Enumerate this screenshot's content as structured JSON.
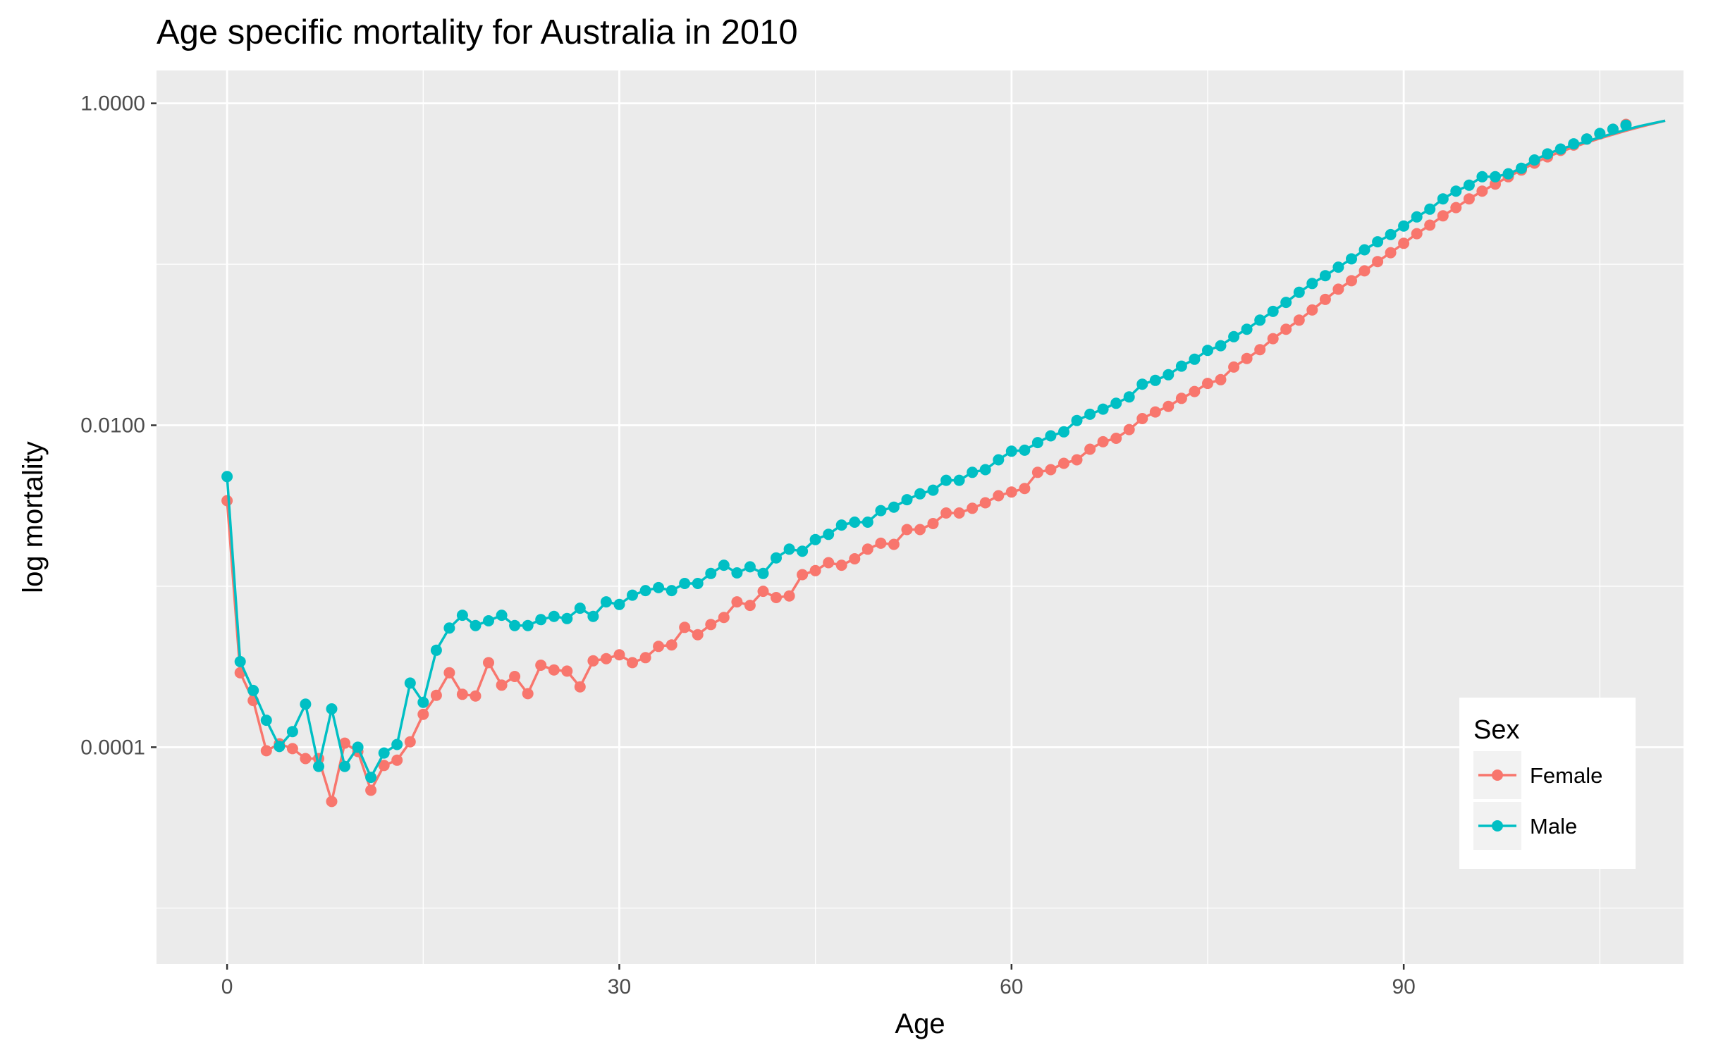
{
  "chart_data": {
    "type": "line",
    "title": "Age specific mortality for Australia in 2010",
    "xlabel": "Age",
    "ylabel": "log mortality",
    "x_scale": "linear",
    "y_scale": "log10",
    "xlim": [
      -5.4,
      111.4
    ],
    "ylim": [
      4.5e-06,
      1.6
    ],
    "x_ticks": [
      0,
      30,
      60,
      90
    ],
    "x_tick_labels": [
      "0",
      "30",
      "60",
      "90"
    ],
    "y_ticks": [
      0.0001,
      0.01,
      1.0
    ],
    "y_tick_labels": [
      "0.0001",
      "0.0100",
      "1.0000"
    ],
    "grid": true,
    "legend": {
      "title": "Sex",
      "position": "bottom-right"
    },
    "x": [
      0,
      1,
      2,
      3,
      4,
      5,
      6,
      7,
      8,
      9,
      10,
      11,
      12,
      13,
      14,
      15,
      16,
      17,
      18,
      19,
      20,
      21,
      22,
      23,
      24,
      25,
      26,
      27,
      28,
      29,
      30,
      31,
      32,
      33,
      34,
      35,
      36,
      37,
      38,
      39,
      40,
      41,
      42,
      43,
      44,
      45,
      46,
      47,
      48,
      49,
      50,
      51,
      52,
      53,
      54,
      55,
      56,
      57,
      58,
      59,
      60,
      61,
      62,
      63,
      64,
      65,
      66,
      67,
      68,
      69,
      70,
      71,
      72,
      73,
      74,
      75,
      76,
      77,
      78,
      79,
      80,
      81,
      82,
      83,
      84,
      85,
      86,
      87,
      88,
      89,
      90,
      91,
      92,
      93,
      94,
      95,
      96,
      97,
      98,
      99,
      100,
      101,
      102,
      103,
      104,
      105,
      106,
      107,
      108,
      109,
      110
    ],
    "series": [
      {
        "name": "Female",
        "color": "#F8766D",
        "values": [
          0.0034,
          0.00029,
          0.000195,
          9.5e-05,
          0.000105,
          9.8e-05,
          8.5e-05,
          8.5e-05,
          4.6e-05,
          0.000106,
          9.4e-05,
          5.4e-05,
          7.7e-05,
          8.3e-05,
          0.000108,
          0.00016,
          0.00021,
          0.00029,
          0.000213,
          0.000208,
          0.000335,
          0.000243,
          0.000275,
          0.000215,
          0.000323,
          0.000302,
          0.000297,
          0.000237,
          0.000344,
          0.000355,
          0.000375,
          0.000335,
          0.00036,
          0.000423,
          0.000432,
          0.000555,
          0.0005,
          0.000578,
          0.00064,
          0.0008,
          0.00076,
          0.00093,
          0.00085,
          0.00087,
          0.00118,
          0.00125,
          0.0014,
          0.00135,
          0.00148,
          0.0017,
          0.00185,
          0.00182,
          0.00225,
          0.00225,
          0.00245,
          0.00285,
          0.00285,
          0.00305,
          0.0033,
          0.00365,
          0.00385,
          0.00405,
          0.0051,
          0.0053,
          0.0058,
          0.0061,
          0.0071,
          0.0079,
          0.0083,
          0.0094,
          0.011,
          0.0121,
          0.0131,
          0.0147,
          0.0162,
          0.0182,
          0.0192,
          0.023,
          0.026,
          0.0295,
          0.0345,
          0.0395,
          0.045,
          0.052,
          0.0605,
          0.07,
          0.079,
          0.091,
          0.104,
          0.118,
          0.135,
          0.155,
          0.175,
          0.2,
          0.225,
          0.255,
          0.285,
          0.315,
          0.35,
          0.385,
          0.425,
          0.465,
          0.51,
          0.55,
          0.6,
          0.645,
          0.69,
          0.74,
          null,
          null,
          null
        ],
        "fitted": [
          0.0034,
          0.00029,
          0.000195,
          9.5e-05,
          0.000105,
          9.8e-05,
          8.5e-05,
          8.5e-05,
          4.6e-05,
          0.000106,
          9.4e-05,
          5.4e-05,
          7.7e-05,
          8.3e-05,
          0.000108,
          0.00016,
          0.00021,
          0.00029,
          0.000213,
          0.000208,
          0.000335,
          0.000243,
          0.000275,
          0.000215,
          0.000323,
          0.000302,
          0.000297,
          0.000237,
          0.000344,
          0.000355,
          0.000375,
          0.000335,
          0.00036,
          0.000423,
          0.000432,
          0.000555,
          0.0005,
          0.000578,
          0.00064,
          0.0008,
          0.00076,
          0.00093,
          0.00085,
          0.00087,
          0.00118,
          0.00125,
          0.0014,
          0.00135,
          0.00148,
          0.0017,
          0.00185,
          0.00182,
          0.00225,
          0.00225,
          0.00245,
          0.00285,
          0.00285,
          0.00305,
          0.0033,
          0.00365,
          0.00385,
          0.00405,
          0.0051,
          0.0053,
          0.0058,
          0.0061,
          0.0071,
          0.0079,
          0.0083,
          0.0094,
          0.011,
          0.0121,
          0.0131,
          0.0147,
          0.0162,
          0.0182,
          0.0192,
          0.023,
          0.026,
          0.0295,
          0.0345,
          0.0395,
          0.045,
          0.052,
          0.0605,
          0.07,
          0.079,
          0.091,
          0.104,
          0.118,
          0.135,
          0.155,
          0.175,
          0.2,
          0.225,
          0.255,
          0.285,
          0.315,
          0.35,
          0.385,
          0.425,
          0.465,
          0.5,
          0.535,
          0.57,
          0.605,
          0.64,
          0.675,
          0.71,
          0.745,
          0.78
        ]
      },
      {
        "name": "Male",
        "color": "#00BFC4",
        "values": [
          0.0048,
          0.00034,
          0.000225,
          0.000147,
          0.000101,
          0.000125,
          0.000185,
          7.6e-05,
          0.000173,
          7.6e-05,
          0.0001,
          6.5e-05,
          9.2e-05,
          0.000104,
          0.00025,
          0.00019,
          0.0004,
          0.00055,
          0.00066,
          0.00057,
          0.00061,
          0.00066,
          0.00057,
          0.00057,
          0.00062,
          0.00065,
          0.00063,
          0.00073,
          0.00065,
          0.0008,
          0.00077,
          0.00088,
          0.00094,
          0.00098,
          0.00094,
          0.00104,
          0.00104,
          0.0012,
          0.00135,
          0.00121,
          0.00132,
          0.0012,
          0.0015,
          0.0017,
          0.00165,
          0.00195,
          0.0021,
          0.0024,
          0.0025,
          0.0025,
          0.00295,
          0.0031,
          0.00345,
          0.00375,
          0.00395,
          0.00455,
          0.00455,
          0.0051,
          0.0053,
          0.0061,
          0.0069,
          0.007,
          0.0078,
          0.0086,
          0.0091,
          0.0107,
          0.0117,
          0.0126,
          0.0137,
          0.015,
          0.018,
          0.019,
          0.0206,
          0.0233,
          0.0257,
          0.0292,
          0.0312,
          0.0355,
          0.0395,
          0.045,
          0.051,
          0.058,
          0.067,
          0.076,
          0.085,
          0.096,
          0.108,
          0.123,
          0.138,
          0.153,
          0.173,
          0.197,
          0.22,
          0.255,
          0.285,
          0.31,
          0.35,
          0.35,
          0.365,
          0.395,
          0.445,
          0.485,
          0.52,
          0.56,
          0.6,
          0.65,
          0.69,
          0.73,
          null,
          null,
          null
        ],
        "fitted": [
          0.0048,
          0.00034,
          0.000225,
          0.000147,
          0.000101,
          0.000125,
          0.000185,
          7.6e-05,
          0.000173,
          7.6e-05,
          0.0001,
          6.5e-05,
          9.2e-05,
          0.000104,
          0.00025,
          0.00019,
          0.0004,
          0.00055,
          0.00066,
          0.00057,
          0.00061,
          0.00066,
          0.00057,
          0.00057,
          0.00062,
          0.00065,
          0.00063,
          0.00073,
          0.00065,
          0.0008,
          0.00077,
          0.00088,
          0.00094,
          0.00098,
          0.00094,
          0.00104,
          0.00104,
          0.0012,
          0.00135,
          0.00121,
          0.00132,
          0.0012,
          0.0015,
          0.0017,
          0.00165,
          0.00195,
          0.0021,
          0.0024,
          0.0025,
          0.0025,
          0.00295,
          0.0031,
          0.00345,
          0.00375,
          0.00395,
          0.00455,
          0.00455,
          0.0051,
          0.0053,
          0.0061,
          0.0069,
          0.007,
          0.0078,
          0.0086,
          0.0091,
          0.0107,
          0.0117,
          0.0126,
          0.0137,
          0.015,
          0.018,
          0.019,
          0.0206,
          0.0233,
          0.0257,
          0.0292,
          0.0312,
          0.0355,
          0.0395,
          0.045,
          0.051,
          0.058,
          0.067,
          0.076,
          0.085,
          0.096,
          0.108,
          0.123,
          0.138,
          0.153,
          0.173,
          0.197,
          0.22,
          0.255,
          0.285,
          0.31,
          0.35,
          0.35,
          0.365,
          0.395,
          0.445,
          0.485,
          0.52,
          0.55,
          0.58,
          0.615,
          0.65,
          0.685,
          0.72,
          0.75,
          0.78
        ]
      }
    ]
  }
}
